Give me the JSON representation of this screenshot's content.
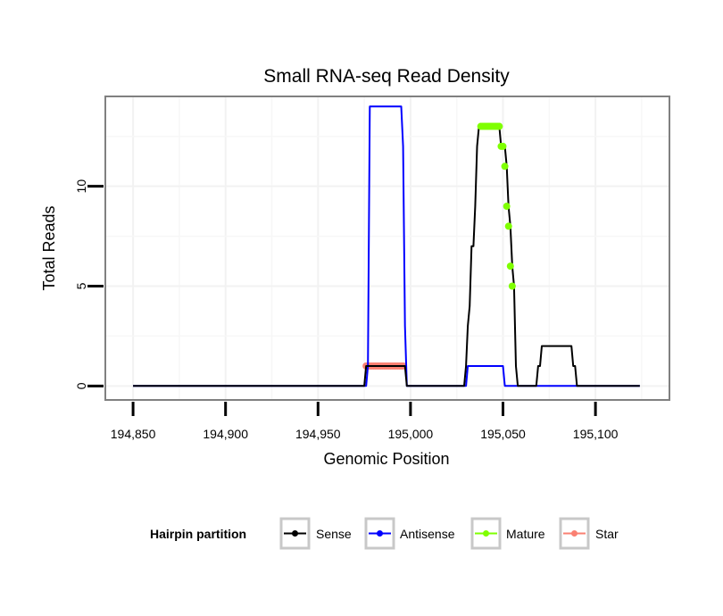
{
  "chart_data": {
    "type": "line",
    "title": "Small RNA-seq Read Density",
    "xlabel": "Genomic Position",
    "ylabel": "Total Reads",
    "xlim": [
      194835,
      195140
    ],
    "ylim": [
      -0.7,
      14.5
    ],
    "x_ticks": [
      {
        "value": 194850,
        "label": "194,850"
      },
      {
        "value": 194900,
        "label": "194,900"
      },
      {
        "value": 194950,
        "label": "194,950"
      },
      {
        "value": 195000,
        "label": "195,000"
      },
      {
        "value": 195050,
        "label": "195,050"
      },
      {
        "value": 195100,
        "label": "195,100"
      }
    ],
    "y_ticks": [
      {
        "value": 0,
        "label": "0"
      },
      {
        "value": 5,
        "label": "5"
      },
      {
        "value": 10,
        "label": "10"
      }
    ],
    "legend": {
      "title": "Hairpin partition",
      "position": "bottom",
      "entries": [
        "Sense",
        "Antisense",
        "Mature",
        "Star"
      ]
    },
    "series": [
      {
        "name": "Antisense",
        "color": "#0000ff",
        "style": "line",
        "points": [
          [
            194850,
            0
          ],
          [
            194976,
            0
          ],
          [
            194977,
            1
          ],
          [
            194978,
            14
          ],
          [
            194995,
            14
          ],
          [
            194996,
            12
          ],
          [
            194997,
            3
          ],
          [
            194998,
            0
          ],
          [
            195030,
            0
          ],
          [
            195031,
            1
          ],
          [
            195050,
            1
          ],
          [
            195051,
            0
          ],
          [
            195124,
            0
          ]
        ]
      },
      {
        "name": "Sense",
        "color": "#000000",
        "style": "line",
        "points": [
          [
            194850,
            0
          ],
          [
            194975,
            0
          ],
          [
            194976,
            1
          ],
          [
            194997,
            1
          ],
          [
            194998,
            0
          ],
          [
            195029,
            0
          ],
          [
            195030,
            1
          ],
          [
            195031,
            3
          ],
          [
            195032,
            4
          ],
          [
            195033,
            7
          ],
          [
            195034,
            7
          ],
          [
            195035,
            9
          ],
          [
            195036,
            12
          ],
          [
            195037,
            13
          ],
          [
            195048,
            13
          ],
          [
            195049,
            12
          ],
          [
            195051,
            12
          ],
          [
            195052,
            11
          ],
          [
            195053,
            9
          ],
          [
            195054,
            8
          ],
          [
            195055,
            6
          ],
          [
            195056,
            5
          ],
          [
            195057,
            1
          ],
          [
            195058,
            0
          ],
          [
            195068,
            0
          ],
          [
            195069,
            1
          ],
          [
            195070,
            1
          ],
          [
            195071,
            2
          ],
          [
            195087,
            2
          ],
          [
            195088,
            1
          ],
          [
            195089,
            1
          ],
          [
            195090,
            0
          ],
          [
            195124,
            0
          ]
        ]
      },
      {
        "name": "Mature",
        "color": "#7fff00",
        "style": "points",
        "points": [
          [
            195038,
            13
          ],
          [
            195039,
            13
          ],
          [
            195040,
            13
          ],
          [
            195041,
            13
          ],
          [
            195042,
            13
          ],
          [
            195043,
            13
          ],
          [
            195044,
            13
          ],
          [
            195045,
            13
          ],
          [
            195046,
            13
          ],
          [
            195047,
            13
          ],
          [
            195048,
            13
          ],
          [
            195049,
            12
          ],
          [
            195050,
            12
          ],
          [
            195051,
            11
          ],
          [
            195052,
            9
          ],
          [
            195053,
            8
          ],
          [
            195054,
            6
          ],
          [
            195055,
            5
          ]
        ]
      },
      {
        "name": "Star",
        "color": "#fa8072",
        "style": "points",
        "points": [
          [
            194976,
            1
          ],
          [
            194977,
            1
          ],
          [
            194978,
            1
          ],
          [
            194979,
            1
          ],
          [
            194980,
            1
          ],
          [
            194981,
            1
          ],
          [
            194982,
            1
          ],
          [
            194983,
            1
          ],
          [
            194984,
            1
          ],
          [
            194985,
            1
          ],
          [
            194986,
            1
          ],
          [
            194987,
            1
          ],
          [
            194988,
            1
          ],
          [
            194989,
            1
          ],
          [
            194990,
            1
          ],
          [
            194991,
            1
          ],
          [
            194992,
            1
          ],
          [
            194993,
            1
          ],
          [
            194994,
            1
          ],
          [
            194995,
            1
          ],
          [
            194996,
            1
          ]
        ]
      }
    ]
  }
}
